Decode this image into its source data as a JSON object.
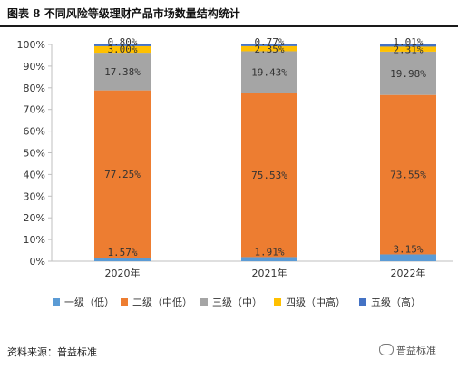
{
  "header": {
    "title": "图表 8 不同风险等级理财产品市场数量结构统计"
  },
  "footer": {
    "source": "资料来源：普益标准",
    "watermark": "普益标准"
  },
  "chart_data": {
    "type": "bar",
    "stacked": true,
    "percent": true,
    "categories": [
      "2020年",
      "2021年",
      "2022年"
    ],
    "series": [
      {
        "name": "一级（低）",
        "values": [
          1.57,
          1.91,
          3.15
        ],
        "color": "#5b9bd5",
        "labels": [
          "1.57%",
          "1.91%",
          "3.15%"
        ]
      },
      {
        "name": "二级（中低）",
        "values": [
          77.25,
          75.53,
          73.55
        ],
        "color": "#ed7d31",
        "labels": [
          "77.25%",
          "75.53%",
          "73.55%"
        ]
      },
      {
        "name": "三级（中）",
        "values": [
          17.38,
          19.43,
          19.98
        ],
        "color": "#a5a5a5",
        "labels": [
          "17.38%",
          "19.43%",
          "19.98%"
        ]
      },
      {
        "name": "四级（中高）",
        "values": [
          3.0,
          2.35,
          2.31
        ],
        "color": "#ffc000",
        "labels": [
          "3.00%",
          "2.35%",
          "2.31%"
        ]
      },
      {
        "name": "五级（高）",
        "values": [
          0.8,
          0.77,
          1.01
        ],
        "color": "#4472c4",
        "labels": [
          "0.80%",
          "0.77%",
          "1.01%"
        ]
      }
    ],
    "yticks": [
      "0%",
      "10%",
      "20%",
      "30%",
      "40%",
      "50%",
      "60%",
      "70%",
      "80%",
      "90%",
      "100%"
    ],
    "ylim": [
      0,
      100
    ],
    "legend_position": "bottom",
    "grid": false
  }
}
